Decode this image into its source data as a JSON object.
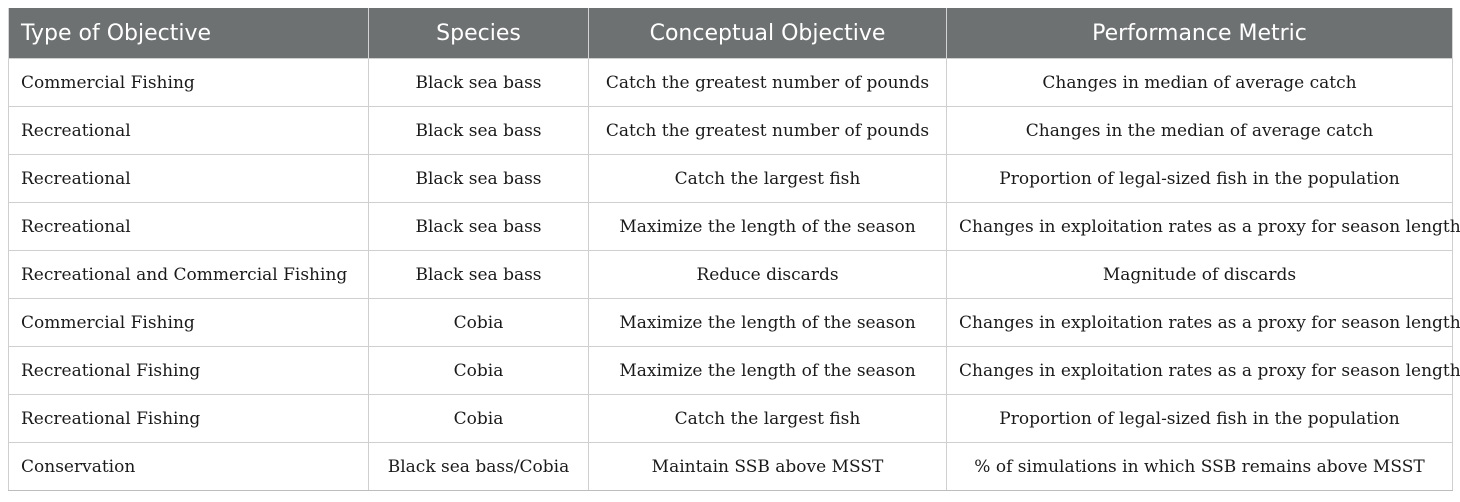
{
  "table": {
    "headers": [
      "Type of Objective",
      "Species",
      "Conceptual Objective",
      "Performance Metric"
    ],
    "rows": [
      [
        "Commercial Fishing",
        "Black sea bass",
        "Catch the greatest number of pounds",
        "Changes in median of average catch"
      ],
      [
        "Recreational",
        "Black sea bass",
        "Catch the greatest number of pounds",
        "Changes in the median of average catch"
      ],
      [
        "Recreational",
        "Black sea bass",
        "Catch the largest fish",
        "Proportion of legal-sized fish in the population"
      ],
      [
        "Recreational",
        "Black sea bass",
        "Maximize the length of the season",
        "Changes in exploitation rates as a proxy for season length"
      ],
      [
        "Recreational and Commercial Fishing",
        "Black sea bass",
        "Reduce discards",
        "Magnitude of discards"
      ],
      [
        "Commercial Fishing",
        "Cobia",
        "Maximize the length of the season",
        "Changes in exploitation rates as a proxy for season length"
      ],
      [
        "Recreational Fishing",
        "Cobia",
        "Maximize the length of the season",
        "Changes in exploitation rates as a proxy for season length"
      ],
      [
        "Recreational Fishing",
        "Cobia",
        "Catch the largest fish",
        "Proportion of legal-sized fish in the population"
      ],
      [
        "Conservation",
        "Black sea bass/Cobia",
        "Maintain SSB above MSST",
        "% of simulations in which SSB remains above MSST"
      ]
    ]
  }
}
